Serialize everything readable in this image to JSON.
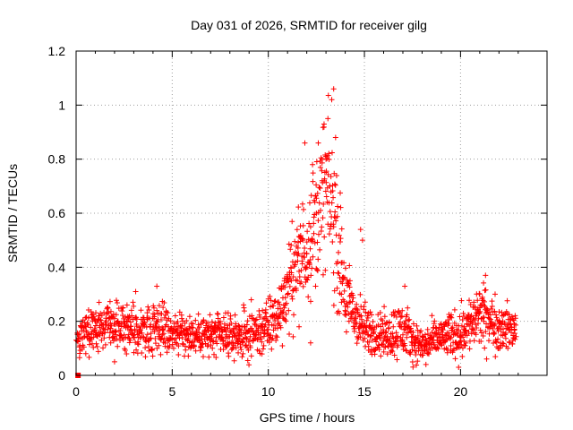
{
  "chart_data": {
    "type": "scatter",
    "title": "Day 031 of 2026, SRMTID for receiver gilg",
    "xlabel": "GPS time / hours",
    "ylabel": "SRMTID / TECUs",
    "xlim": [
      0,
      24.5
    ],
    "ylim": [
      0,
      1.2
    ],
    "x_ticks": [
      0,
      5,
      10,
      15,
      20
    ],
    "x_tick_labels": [
      "0",
      "5",
      "10",
      "15",
      "20"
    ],
    "y_ticks": [
      0,
      0.2,
      0.4,
      0.6,
      0.8,
      1,
      1.2
    ],
    "y_tick_labels": [
      "0",
      "0.2",
      "0.4",
      "0.6",
      "0.8",
      "1",
      "1.2"
    ],
    "grid": true,
    "marker": "plus",
    "colors": {
      "series": "#ff0000",
      "grid": "#a0a0a0",
      "axis": "#000000"
    },
    "series": [
      {
        "name": "SRMTID",
        "x": [
          0.0,
          0.2,
          0.5,
          0.8,
          1.0,
          1.2,
          1.5,
          1.8,
          2.0,
          2.2,
          2.5,
          2.8,
          3.0,
          3.2,
          3.5,
          3.8,
          4.0,
          4.2,
          4.5,
          4.8,
          5.0,
          5.2,
          5.5,
          5.8,
          6.0,
          6.2,
          6.5,
          6.8,
          7.0,
          7.2,
          7.5,
          7.8,
          8.0,
          8.2,
          8.5,
          8.8,
          9.0,
          9.2,
          9.5,
          9.8,
          10.0,
          10.2,
          10.5,
          10.8,
          11.0,
          11.2,
          11.5,
          11.8,
          12.0,
          12.2,
          12.5,
          12.8,
          13.0,
          13.2,
          13.4,
          13.6,
          13.8,
          14.0,
          14.2,
          14.5,
          14.8,
          15.0,
          15.2,
          15.5,
          15.8,
          16.0,
          16.2,
          16.5,
          16.8,
          17.0,
          17.2,
          17.5,
          17.8,
          18.0,
          18.2,
          18.5,
          18.8,
          19.0,
          19.2,
          19.5,
          19.8,
          20.0,
          20.2,
          20.5,
          20.8,
          21.0,
          21.2,
          21.5,
          21.8,
          22.0,
          22.2,
          22.5,
          22.8
        ],
        "values": [
          0.13,
          0.11,
          0.18,
          0.14,
          0.2,
          0.22,
          0.17,
          0.12,
          0.21,
          0.19,
          0.15,
          0.17,
          0.14,
          0.16,
          0.19,
          0.13,
          0.17,
          0.24,
          0.15,
          0.18,
          0.16,
          0.17,
          0.21,
          0.13,
          0.12,
          0.15,
          0.19,
          0.14,
          0.13,
          0.16,
          0.14,
          0.15,
          0.12,
          0.17,
          0.18,
          0.14,
          0.13,
          0.16,
          0.15,
          0.18,
          0.17,
          0.22,
          0.21,
          0.26,
          0.3,
          0.35,
          0.45,
          0.5,
          0.45,
          0.55,
          0.6,
          0.72,
          0.8,
          0.7,
          0.55,
          0.42,
          0.3,
          0.24,
          0.2,
          0.23,
          0.18,
          0.16,
          0.15,
          0.17,
          0.14,
          0.16,
          0.13,
          0.18,
          0.19,
          0.15,
          0.14,
          0.12,
          0.11,
          0.1,
          0.12,
          0.14,
          0.13,
          0.16,
          0.15,
          0.14,
          0.17,
          0.16,
          0.18,
          0.2,
          0.22,
          0.25,
          0.26,
          0.21,
          0.19,
          0.18,
          0.2,
          0.17,
          0.19
        ]
      }
    ],
    "scatter_cloud": {
      "bands": [
        [
          0.0,
          0.13,
          0.06
        ],
        [
          0.5,
          0.16,
          0.09
        ],
        [
          1.5,
          0.19,
          0.1
        ],
        [
          2.5,
          0.17,
          0.1
        ],
        [
          3.5,
          0.17,
          0.1
        ],
        [
          4.2,
          0.19,
          0.12
        ],
        [
          5.0,
          0.16,
          0.08
        ],
        [
          6.0,
          0.15,
          0.08
        ],
        [
          7.0,
          0.15,
          0.09
        ],
        [
          8.0,
          0.14,
          0.08
        ],
        [
          9.0,
          0.15,
          0.1
        ],
        [
          10.0,
          0.18,
          0.12
        ],
        [
          10.5,
          0.22,
          0.12
        ],
        [
          11.0,
          0.32,
          0.16
        ],
        [
          11.5,
          0.42,
          0.22
        ],
        [
          12.0,
          0.48,
          0.22
        ],
        [
          12.5,
          0.58,
          0.26
        ],
        [
          13.0,
          0.7,
          0.3
        ],
        [
          13.5,
          0.55,
          0.3
        ],
        [
          14.0,
          0.3,
          0.18
        ],
        [
          14.5,
          0.22,
          0.12
        ],
        [
          15.0,
          0.17,
          0.1
        ],
        [
          16.0,
          0.15,
          0.09
        ],
        [
          17.0,
          0.17,
          0.12
        ],
        [
          17.5,
          0.13,
          0.08
        ],
        [
          18.0,
          0.11,
          0.07
        ],
        [
          19.0,
          0.14,
          0.08
        ],
        [
          20.0,
          0.16,
          0.1
        ],
        [
          21.0,
          0.22,
          0.13
        ],
        [
          22.0,
          0.18,
          0.1
        ],
        [
          22.9,
          0.17,
          0.08
        ]
      ],
      "outliers": [
        [
          13.4,
          1.06
        ],
        [
          13.3,
          1.02
        ],
        [
          13.1,
          0.95
        ],
        [
          12.9,
          0.93
        ],
        [
          12.6,
          0.86
        ],
        [
          13.5,
          0.88
        ],
        [
          11.9,
          0.86
        ],
        [
          12.3,
          0.78
        ],
        [
          14.8,
          0.54
        ],
        [
          14.9,
          0.5
        ],
        [
          12.2,
          0.12
        ],
        [
          11.6,
          0.18
        ],
        [
          19.9,
          0.03
        ],
        [
          18.2,
          0.04
        ],
        [
          2.0,
          0.05
        ],
        [
          21.3,
          0.37
        ],
        [
          4.2,
          0.33
        ],
        [
          3.1,
          0.31
        ],
        [
          17.1,
          0.33
        ]
      ],
      "origin_marker": [
        0.1,
        0.0
      ]
    }
  }
}
